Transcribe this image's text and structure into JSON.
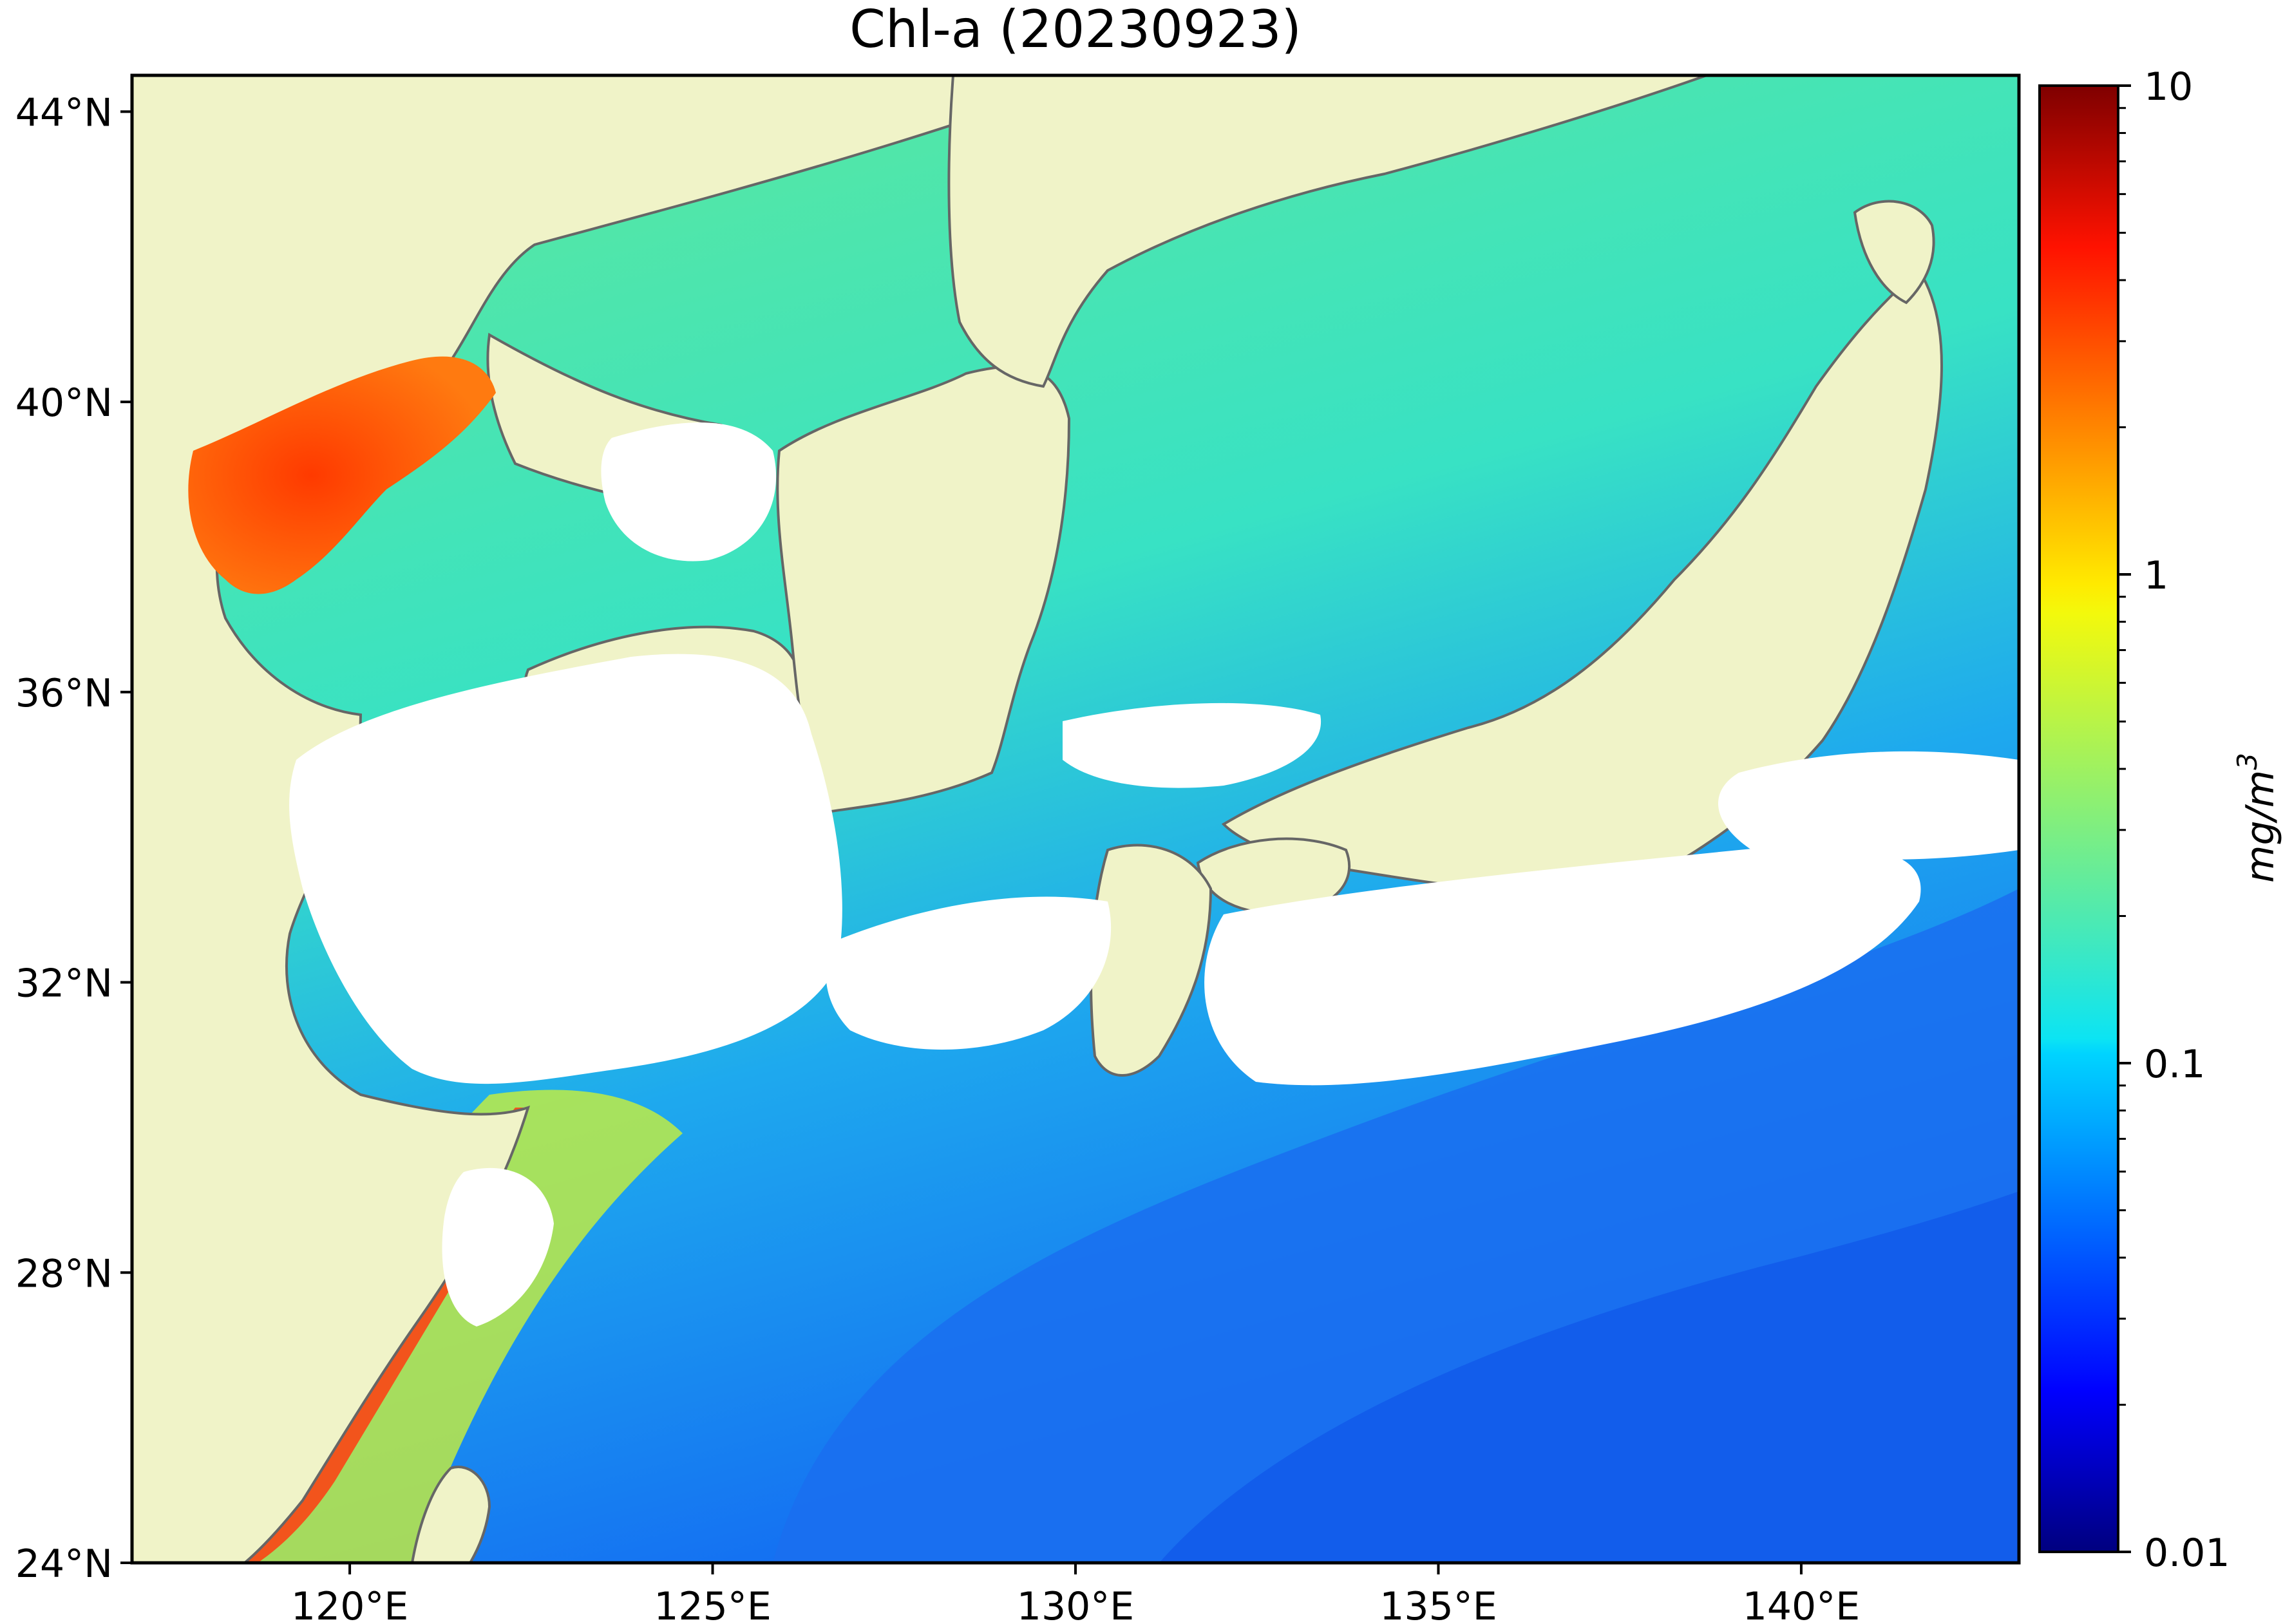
{
  "title": "Chl-a (20230923)",
  "map": {
    "variable": "Chl-a",
    "date": "20230923",
    "lon_range": [
      117,
      143
    ],
    "lat_range": [
      24,
      44.5
    ],
    "x_ticks": [
      "120°E",
      "125°E",
      "130°E",
      "135°E",
      "140°E"
    ],
    "x_tick_values": [
      120,
      125,
      130,
      135,
      140
    ],
    "y_ticks": [
      "24°N",
      "28°N",
      "32°N",
      "36°N",
      "40°N",
      "44°N"
    ],
    "y_tick_values": [
      24,
      28,
      32,
      36,
      40,
      44
    ],
    "colors": {
      "land": "#f0f3c8",
      "coastline": "#666666",
      "no_data": "#ffffff"
    }
  },
  "colorbar": {
    "label": "mg/m",
    "label_superscript": "3",
    "scale": "log",
    "range": [
      0.01,
      10
    ],
    "ticks": [
      "10",
      "1",
      "0.1",
      "0.01"
    ],
    "tick_values": [
      10,
      1,
      0.1,
      0.01
    ],
    "colormap": "jet"
  }
}
